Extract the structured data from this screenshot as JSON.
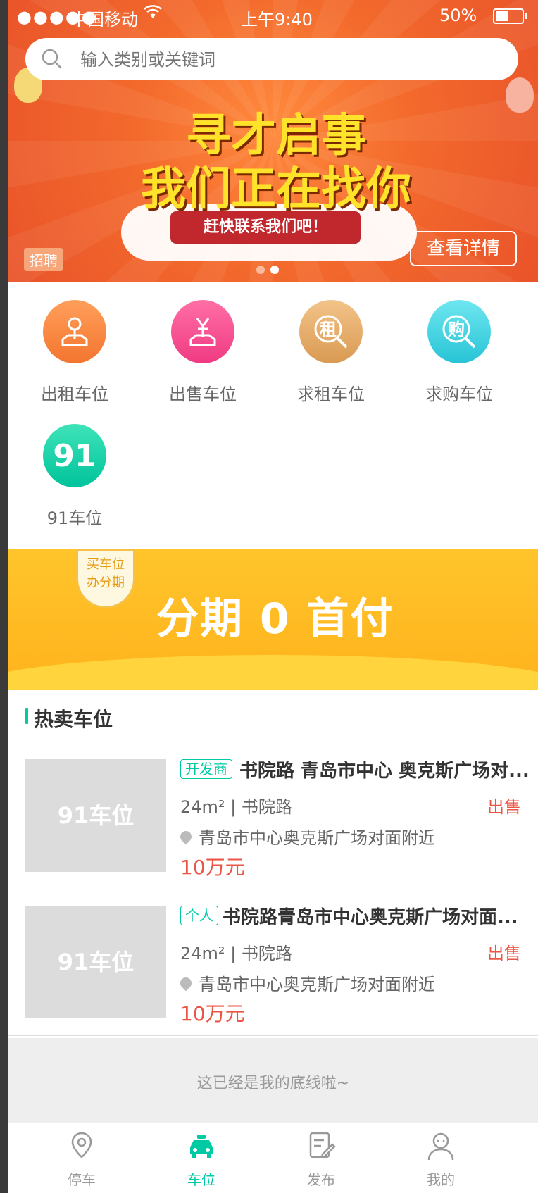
{
  "status_bar": {
    "dots": "●●●●●",
    "carrier": "中国移动",
    "time": "上午9:40",
    "battery_percent": "50%"
  },
  "search": {
    "placeholder": "输入类别或关键词"
  },
  "banner": {
    "headline_line1": "寻才启事",
    "headline_line2": "我们正在找你",
    "ribbon": "赶快联系我们吧！",
    "badge": "招聘",
    "details_button": "查看详情"
  },
  "categories": [
    {
      "label": "出租车位",
      "icon": "key-map-icon"
    },
    {
      "label": "出售车位",
      "icon": "yen-icon"
    },
    {
      "label": "求租车位",
      "icon": "rent-search-icon"
    },
    {
      "label": "求购车位",
      "icon": "buy-search-icon"
    },
    {
      "label": "91车位",
      "icon": "brand-91-icon"
    }
  ],
  "promo": {
    "badge_line1": "买车位",
    "badge_line2": "办分期",
    "title": "分期 0 首付"
  },
  "section": {
    "title": "热卖车位"
  },
  "listings": [
    {
      "thumb": "91车位",
      "tag": "开发商",
      "title": "书院路 青岛市中心 奥克斯广场对...",
      "area": "24m²",
      "district": "书院路",
      "type": "出售",
      "address": "青岛市中心奥克斯广场对面附近",
      "price": "10万元"
    },
    {
      "thumb": "91车位",
      "tag": "个人",
      "title": "书院路青岛市中心奥克斯广场对面...",
      "area": "24m²",
      "district": "书院路",
      "type": "出售",
      "address": "青岛市中心奥克斯广场对面附近",
      "price": "10万元"
    }
  ],
  "footer_note": "这已经是我的底线啦~",
  "tabs": [
    {
      "label": "停车",
      "icon": "map-pin-icon",
      "active": false
    },
    {
      "label": "车位",
      "icon": "car-icon",
      "active": true
    },
    {
      "label": "发布",
      "icon": "edit-icon",
      "active": false
    },
    {
      "label": "我的",
      "icon": "user-icon",
      "active": false
    }
  ],
  "colors": {
    "accent": "#00caa3",
    "price": "#ea5544",
    "text_dark": "#333333",
    "text_mid": "#666666",
    "text_light": "#999999",
    "divider": "#dddddd",
    "footer_bg": "#eeeeee"
  }
}
